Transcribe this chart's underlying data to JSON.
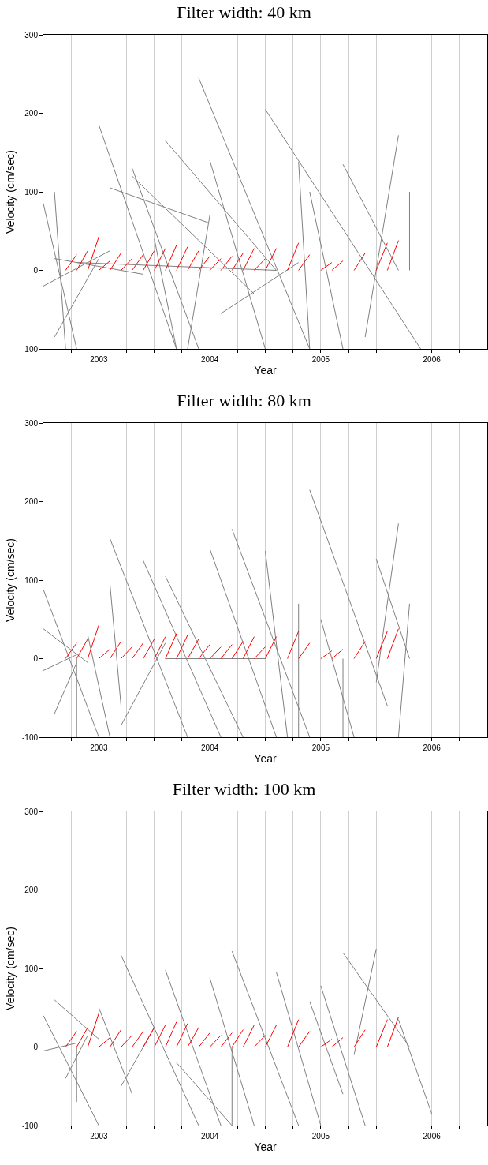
{
  "chart_data": [
    {
      "type": "line",
      "title": "Filter width: 40 km",
      "xlabel": "Year",
      "ylabel": "Velocity (cm/sec)",
      "xlim": [
        2002.5,
        2006.5
      ],
      "ylim": [
        -100,
        300
      ],
      "xticks": [
        {
          "value": 2002.75,
          "label": null
        },
        2003,
        {
          "value": 2003.25,
          "label": null
        },
        {
          "value": 2003.5,
          "label": null
        },
        {
          "value": 2003.75,
          "label": null
        },
        2004,
        {
          "value": 2004.25,
          "label": null
        },
        {
          "value": 2004.5,
          "label": null
        },
        {
          "value": 2004.75,
          "label": null
        },
        2005,
        {
          "value": 2005.25,
          "label": null
        },
        {
          "value": 2005.5,
          "label": null
        },
        {
          "value": 2005.75,
          "label": null
        },
        2006,
        {
          "value": 2006.25,
          "label": null
        }
      ],
      "yticks": [
        -100,
        0,
        100,
        200,
        300
      ],
      "grid": "x",
      "marker": "none",
      "line_style": "solid",
      "series": [
        {
          "color": "#808080",
          "x": [
            2002.5,
            2002.8,
            null,
            2002.6,
            2002.7,
            null,
            2003.0,
            2003.7,
            null,
            2003.9,
            2004.9,
            null,
            2004.5,
            2005.9,
            null,
            2005.7,
            2005.4,
            null,
            2005.8,
            2005.8,
            null,
            2004.0,
            2004.5,
            null,
            2003.6,
            2004.6,
            null,
            2003.3,
            2004.4,
            null,
            2004.8,
            2004.9,
            null,
            2005.2,
            2005.7,
            null,
            2003.1,
            2004.0,
            null,
            2002.5,
            2003.1,
            null,
            2002.6,
            2003.0,
            null,
            2004.1,
            2004.8,
            null,
            2003.5,
            2003.7,
            null,
            2003.3,
            2003.9,
            null,
            2004.0,
            2003.8,
            null,
            2004.9,
            2005.2,
            null,
            2002.8,
            2004.6,
            null,
            2002.6,
            2003.4
          ],
          "values": [
            85,
            -100,
            null,
            100,
            -100,
            null,
            185,
            -100,
            null,
            245,
            -100,
            null,
            205,
            -100,
            null,
            172,
            -85,
            null,
            100,
            0,
            null,
            140,
            -100,
            null,
            165,
            0,
            null,
            120,
            -30,
            null,
            138,
            -100,
            null,
            135,
            0,
            null,
            105,
            60,
            null,
            -20,
            25,
            null,
            -85,
            15,
            null,
            -55,
            10,
            null,
            40,
            -100,
            null,
            130,
            -100,
            null,
            70,
            -100,
            null,
            100,
            -100,
            null,
            10,
            0,
            null,
            15,
            -5
          ]
        },
        {
          "color": "#ff0000",
          "x": [
            2002.7,
            2002.8,
            null,
            2002.8,
            2002.9,
            null,
            2002.9,
            2003.0,
            null,
            2003.0,
            2003.1,
            null,
            2003.1,
            2003.2,
            null,
            2003.2,
            2003.3,
            null,
            2003.3,
            2003.4,
            null,
            2003.4,
            2003.5,
            null,
            2003.5,
            2003.6,
            null,
            2003.6,
            2003.7,
            null,
            2003.7,
            2003.8,
            null,
            2003.8,
            2003.9,
            null,
            2003.9,
            2004.0,
            null,
            2004.0,
            2004.1,
            null,
            2004.1,
            2004.2,
            null,
            2004.2,
            2004.3,
            null,
            2004.3,
            2004.4,
            null,
            2004.4,
            2004.5,
            null,
            2004.5,
            2004.6,
            null,
            2004.7,
            2004.8,
            null,
            2004.8,
            2004.9,
            null,
            2005.0,
            2005.1,
            null,
            2005.1,
            2005.2,
            null,
            2005.3,
            2005.4,
            null,
            2005.5,
            2005.6,
            null,
            2005.6,
            2005.7
          ],
          "values": [
            0,
            20,
            null,
            0,
            25,
            null,
            0,
            43,
            null,
            0,
            12,
            null,
            0,
            22,
            null,
            0,
            15,
            null,
            0,
            20,
            null,
            0,
            25,
            null,
            0,
            28,
            null,
            0,
            32,
            null,
            0,
            30,
            null,
            0,
            25,
            null,
            0,
            18,
            null,
            0,
            15,
            null,
            0,
            18,
            null,
            0,
            22,
            null,
            0,
            28,
            null,
            0,
            15,
            null,
            0,
            28,
            null,
            0,
            35,
            null,
            0,
            20,
            null,
            0,
            10,
            null,
            0,
            12,
            null,
            0,
            22,
            null,
            0,
            35,
            null,
            0,
            38
          ]
        }
      ]
    },
    {
      "type": "line",
      "title": "Filter width: 80 km",
      "xlabel": "Year",
      "ylabel": "Velocity (cm/sec)",
      "xlim": [
        2002.5,
        2006.5
      ],
      "ylim": [
        -100,
        300
      ],
      "xticks": [
        {
          "value": 2002.75,
          "label": null
        },
        2003,
        {
          "value": 2003.25,
          "label": null
        },
        {
          "value": 2003.5,
          "label": null
        },
        {
          "value": 2003.75,
          "label": null
        },
        2004,
        {
          "value": 2004.25,
          "label": null
        },
        {
          "value": 2004.5,
          "label": null
        },
        {
          "value": 2004.75,
          "label": null
        },
        2005,
        {
          "value": 2005.25,
          "label": null
        },
        {
          "value": 2005.5,
          "label": null
        },
        {
          "value": 2005.75,
          "label": null
        },
        2006,
        {
          "value": 2006.25,
          "label": null
        }
      ],
      "yticks": [
        -100,
        0,
        100,
        200,
        300
      ],
      "grid": "x",
      "marker": "none",
      "line_style": "solid",
      "series": [
        {
          "color": "#808080",
          "x": [
            2002.5,
            2003.0,
            null,
            2002.5,
            2002.9,
            null,
            2002.5,
            2002.8,
            null,
            2002.6,
            2002.8,
            null,
            2002.8,
            2002.8,
            null,
            2003.1,
            2003.8,
            null,
            2003.4,
            2004.1,
            null,
            2003.6,
            2004.3,
            null,
            2004.0,
            2004.6,
            null,
            2004.2,
            2004.9,
            null,
            2004.5,
            2004.7,
            null,
            2004.9,
            2005.6,
            null,
            2005.0,
            2005.3,
            null,
            2005.5,
            2005.8,
            null,
            2005.7,
            2005.5,
            null,
            2005.8,
            2005.7,
            null,
            2003.1,
            2003.2,
            null,
            2003.2,
            2003.6,
            null,
            2002.9,
            2003.1,
            null,
            2004.8,
            2004.8,
            null,
            2005.2,
            2005.2,
            null,
            2003.6,
            2004.5
          ],
          "values": [
            88,
            -100,
            null,
            38,
            -5,
            null,
            -15,
            5,
            null,
            -70,
            -5,
            null,
            0,
            -100,
            null,
            153,
            -100,
            null,
            125,
            -100,
            null,
            105,
            -100,
            null,
            140,
            -100,
            null,
            165,
            -100,
            null,
            137,
            -100,
            null,
            215,
            -60,
            null,
            50,
            -100,
            null,
            127,
            0,
            null,
            172,
            -30,
            null,
            70,
            -100,
            null,
            95,
            -60,
            null,
            -85,
            20,
            null,
            30,
            -100,
            null,
            70,
            -100,
            null,
            0,
            -100,
            null,
            0,
            0
          ]
        },
        {
          "color": "#ff0000",
          "x": [
            2002.7,
            2002.8,
            null,
            2002.8,
            2002.9,
            null,
            2002.9,
            2003.0,
            null,
            2003.0,
            2003.1,
            null,
            2003.1,
            2003.2,
            null,
            2003.2,
            2003.3,
            null,
            2003.3,
            2003.4,
            null,
            2003.4,
            2003.5,
            null,
            2003.5,
            2003.6,
            null,
            2003.6,
            2003.7,
            null,
            2003.7,
            2003.8,
            null,
            2003.8,
            2003.9,
            null,
            2003.9,
            2004.0,
            null,
            2004.0,
            2004.1,
            null,
            2004.1,
            2004.2,
            null,
            2004.2,
            2004.3,
            null,
            2004.3,
            2004.4,
            null,
            2004.4,
            2004.5,
            null,
            2004.5,
            2004.6,
            null,
            2004.7,
            2004.8,
            null,
            2004.8,
            2004.9,
            null,
            2005.0,
            2005.1,
            null,
            2005.1,
            2005.2,
            null,
            2005.3,
            2005.4,
            null,
            2005.5,
            2005.6,
            null,
            2005.6,
            2005.7
          ],
          "values": [
            0,
            20,
            null,
            0,
            25,
            null,
            0,
            43,
            null,
            0,
            12,
            null,
            0,
            22,
            null,
            0,
            15,
            null,
            0,
            20,
            null,
            0,
            25,
            null,
            0,
            28,
            null,
            0,
            32,
            null,
            0,
            30,
            null,
            0,
            25,
            null,
            0,
            18,
            null,
            0,
            15,
            null,
            0,
            18,
            null,
            0,
            22,
            null,
            0,
            28,
            null,
            0,
            15,
            null,
            0,
            28,
            null,
            0,
            35,
            null,
            0,
            20,
            null,
            0,
            10,
            null,
            0,
            12,
            null,
            0,
            22,
            null,
            0,
            35,
            null,
            0,
            38
          ]
        }
      ]
    },
    {
      "type": "line",
      "title": "Filter width: 100 km",
      "xlabel": "Year",
      "ylabel": "Velocity (cm/sec)",
      "xlim": [
        2002.5,
        2006.5
      ],
      "ylim": [
        -100,
        300
      ],
      "xticks": [
        {
          "value": 2002.75,
          "label": null
        },
        2003,
        {
          "value": 2003.25,
          "label": null
        },
        {
          "value": 2003.5,
          "label": null
        },
        {
          "value": 2003.75,
          "label": null
        },
        2004,
        {
          "value": 2004.25,
          "label": null
        },
        {
          "value": 2004.5,
          "label": null
        },
        {
          "value": 2004.75,
          "label": null
        },
        2005,
        {
          "value": 2005.25,
          "label": null
        },
        {
          "value": 2005.5,
          "label": null
        },
        {
          "value": 2005.75,
          "label": null
        },
        2006,
        {
          "value": 2006.25,
          "label": null
        }
      ],
      "yticks": [
        -100,
        0,
        100,
        200,
        300
      ],
      "grid": "x",
      "marker": "none",
      "line_style": "solid",
      "series": [
        {
          "color": "#808080",
          "x": [
            2002.5,
            2003.0,
            null,
            2002.5,
            2002.8,
            null,
            2002.6,
            2003.0,
            null,
            2002.7,
            2002.9,
            null,
            2002.8,
            2002.8,
            null,
            2003.2,
            2003.9,
            null,
            2003.6,
            2004.1,
            null,
            2004.0,
            2004.4,
            null,
            2004.2,
            2004.8,
            null,
            2004.6,
            2005.0,
            null,
            2004.9,
            2005.2,
            null,
            2005.0,
            2005.4,
            null,
            2005.2,
            2005.8,
            null,
            2005.5,
            2005.3,
            null,
            2005.7,
            2006.0,
            null,
            2003.0,
            2003.3,
            null,
            2003.5,
            2003.2,
            null,
            2004.2,
            2004.2,
            null,
            2003.7,
            2004.2,
            null,
            2003.0,
            2003.7
          ],
          "values": [
            40,
            -100,
            null,
            -5,
            5,
            null,
            60,
            10,
            null,
            -40,
            15,
            null,
            -70,
            0,
            null,
            117,
            -100,
            null,
            98,
            -100,
            null,
            88,
            -100,
            null,
            122,
            -100,
            null,
            95,
            -100,
            null,
            58,
            -60,
            null,
            78,
            -100,
            null,
            120,
            0,
            null,
            125,
            -10,
            null,
            35,
            -85,
            null,
            50,
            -60,
            null,
            25,
            -50,
            null,
            0,
            -100,
            null,
            -20,
            -100,
            null,
            0,
            0
          ]
        },
        {
          "color": "#ff0000",
          "x": [
            2002.7,
            2002.8,
            null,
            2002.8,
            2002.9,
            null,
            2002.9,
            2003.0,
            null,
            2003.0,
            2003.1,
            null,
            2003.1,
            2003.2,
            null,
            2003.2,
            2003.3,
            null,
            2003.3,
            2003.4,
            null,
            2003.4,
            2003.5,
            null,
            2003.5,
            2003.6,
            null,
            2003.6,
            2003.7,
            null,
            2003.7,
            2003.8,
            null,
            2003.8,
            2003.9,
            null,
            2003.9,
            2004.0,
            null,
            2004.0,
            2004.1,
            null,
            2004.1,
            2004.2,
            null,
            2004.2,
            2004.3,
            null,
            2004.3,
            2004.4,
            null,
            2004.4,
            2004.5,
            null,
            2004.5,
            2004.6,
            null,
            2004.7,
            2004.8,
            null,
            2004.8,
            2004.9,
            null,
            2005.0,
            2005.1,
            null,
            2005.1,
            2005.2,
            null,
            2005.3,
            2005.4,
            null,
            2005.5,
            2005.6,
            null,
            2005.6,
            2005.7
          ],
          "values": [
            0,
            20,
            null,
            0,
            25,
            null,
            0,
            43,
            null,
            0,
            12,
            null,
            0,
            22,
            null,
            0,
            15,
            null,
            0,
            20,
            null,
            0,
            25,
            null,
            0,
            28,
            null,
            0,
            32,
            null,
            0,
            30,
            null,
            0,
            25,
            null,
            0,
            18,
            null,
            0,
            15,
            null,
            0,
            18,
            null,
            0,
            22,
            null,
            0,
            28,
            null,
            0,
            15,
            null,
            0,
            28,
            null,
            0,
            35,
            null,
            0,
            20,
            null,
            0,
            10,
            null,
            0,
            12,
            null,
            0,
            22,
            null,
            0,
            35,
            null,
            0,
            38
          ]
        }
      ]
    }
  ]
}
